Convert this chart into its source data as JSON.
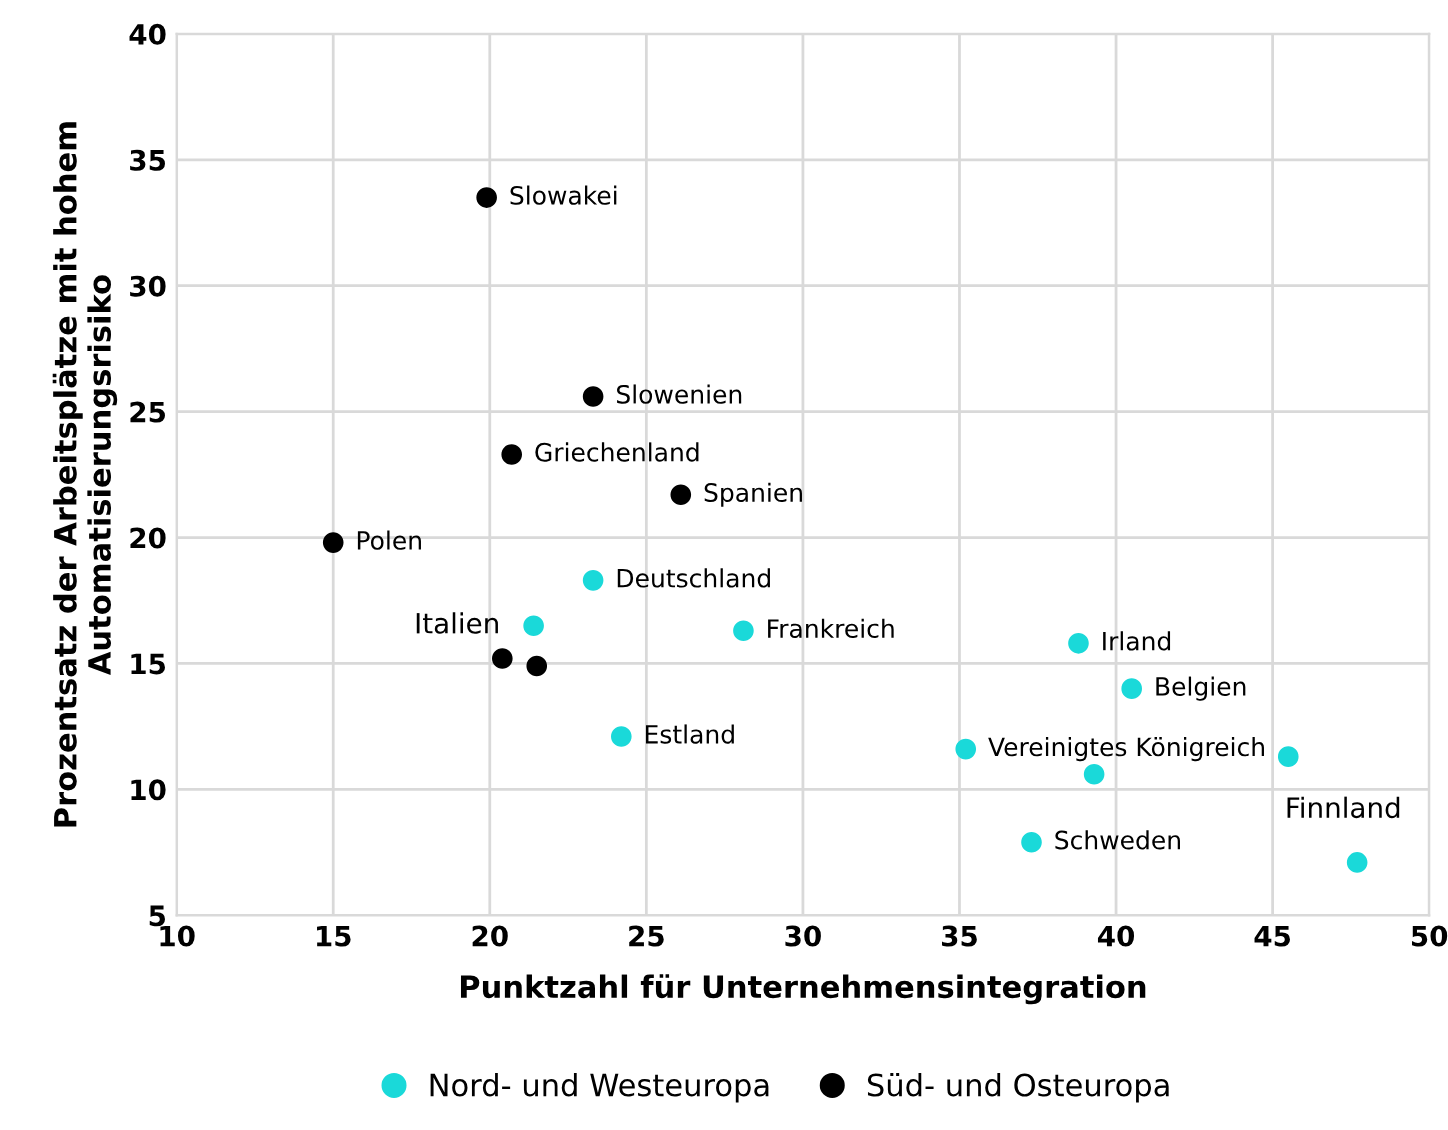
{
  "chart_data": {
    "type": "scatter",
    "xlabel": "Punktzahl für Unternehmensintegration",
    "ylabel": "Prozentsatz der Arbeitsplätze mit hohem Automatisierungsrisiko",
    "xlim": [
      10,
      50
    ],
    "xticks": [
      10,
      15,
      20,
      25,
      30,
      35,
      40,
      45,
      50
    ],
    "ylim": [
      5,
      40
    ],
    "yticks": [
      5,
      10,
      15,
      20,
      25,
      30,
      35,
      40
    ],
    "grid": true,
    "legend": "bottom",
    "marker": "circle",
    "series": [
      {
        "name": "Nord- und Westeuropa",
        "color": "#1ad9d9",
        "x": [
          21.4,
          23.3,
          28.1,
          24.2,
          38.8,
          40.5,
          39.3,
          35.2,
          45.5,
          37.3,
          47.7
        ],
        "values": [
          16.5,
          18.3,
          16.3,
          12.1,
          15.8,
          14.0,
          10.6,
          11.6,
          11.3,
          7.9,
          7.1
        ]
      },
      {
        "name": "Süd- und Osteuropa",
        "color": "#000000",
        "x": [
          19.9,
          23.3,
          20.7,
          26.1,
          15.0,
          20.4,
          21.5
        ],
        "values": [
          33.5,
          25.6,
          23.3,
          21.7,
          19.8,
          15.2,
          14.9
        ]
      }
    ],
    "annotations": [
      {
        "text": "Slowakei",
        "x": 19.9,
        "y": 33.5
      },
      {
        "text": "Slowenien",
        "x": 23.3,
        "y": 25.6
      },
      {
        "text": "Griechenland",
        "x": 20.7,
        "y": 23.3
      },
      {
        "text": "Spanien",
        "x": 26.1,
        "y": 21.7
      },
      {
        "text": "Polen",
        "x": 15.0,
        "y": 19.8
      },
      {
        "text": "Deutschland",
        "x": 23.3,
        "y": 18.3
      },
      {
        "text": "Italien",
        "x": 21.4,
        "y": 16.5
      },
      {
        "text": "Frankreich",
        "x": 28.1,
        "y": 16.3
      },
      {
        "text": "Estland",
        "x": 24.2,
        "y": 12.1
      },
      {
        "text": "Irland",
        "x": 38.8,
        "y": 15.8
      },
      {
        "text": "Belgien",
        "x": 40.5,
        "y": 14.0
      },
      {
        "text": "Vereinigtes Königreich",
        "x": 35.2,
        "y": 11.6
      },
      {
        "text": "Schweden",
        "x": 37.3,
        "y": 7.9
      },
      {
        "text": "Finnland",
        "x": 47.7,
        "y": 7.1
      }
    ]
  }
}
